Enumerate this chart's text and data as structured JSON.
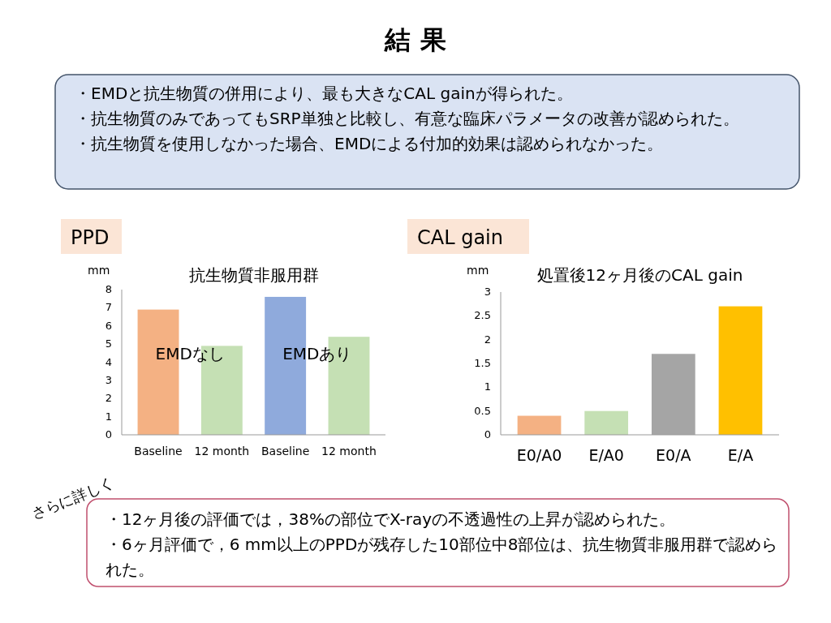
{
  "chart_data": [
    {
      "type": "other",
      "title": "結 果",
      "annotations": [
        "・EMDと抗生物質の併用により、最も大きなCAL gainが得られた。",
        "・抗生物質のみであってもSRP単独と比較し、有意な臨床パラメータの改善が認められた。",
        "・抗生物質を使用しなかった場合、EMDによる付加的効果は認められなかった。",
        "さらに詳しく",
        "・12ヶ月後の評価では，38%の部位でX-rayの不透過性の上昇が認められた。",
        "・6ヶ月評価で，6 mm以上のPPDが残存した10部位中8部位は、抗生物質非服用群で認められた。"
      ]
    },
    {
      "type": "bar",
      "subtitle": "PPD",
      "title": "抗生物質非服用群",
      "ylabel": "mm",
      "categories": [
        "Baseline",
        "12 month",
        "Baseline",
        "12 month"
      ],
      "values": [
        6.9,
        4.9,
        7.6,
        5.4
      ],
      "colors": [
        "#f4b183",
        "#c5e0b4",
        "#8faadc",
        "#c5e0b4"
      ],
      "ylim": [
        0,
        8
      ],
      "yticks": [
        0,
        1,
        2,
        3,
        4,
        5,
        6,
        7,
        8
      ],
      "annotations": [
        "EMDなし",
        "EMDあり"
      ]
    },
    {
      "type": "bar",
      "subtitle": "CAL gain",
      "title": "処置後12ヶ月後のCAL gain",
      "ylabel": "mm",
      "categories": [
        "E0/A0",
        "E/A0",
        "E0/A",
        "E/A"
      ],
      "values": [
        0.4,
        0.5,
        1.7,
        2.7
      ],
      "colors": [
        "#f4b183",
        "#c5e0b4",
        "#a5a5a5",
        "#ffc000"
      ],
      "ylim": [
        0,
        3
      ],
      "yticks": [
        0,
        0.5,
        1,
        1.5,
        2,
        2.5,
        3
      ]
    }
  ]
}
